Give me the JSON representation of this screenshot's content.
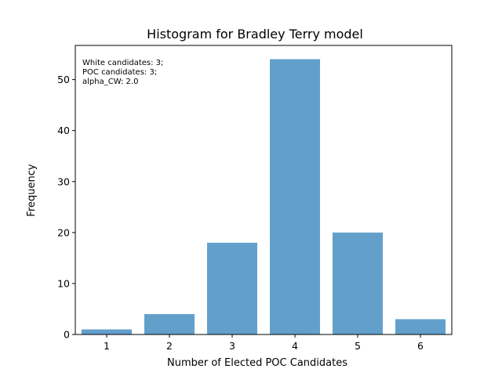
{
  "chart_data": {
    "type": "bar",
    "title": "Histogram for Bradley Terry model",
    "xlabel": "Number of Elected POC Candidates",
    "ylabel": "Frequency",
    "categories": [
      "1",
      "2",
      "3",
      "4",
      "5",
      "6"
    ],
    "values": [
      1,
      4,
      18,
      54,
      20,
      3
    ],
    "x_range": [
      0.5,
      6.5
    ],
    "ylim": [
      0,
      56.7
    ],
    "yticks": [
      "0",
      "10",
      "20",
      "30",
      "40",
      "50"
    ],
    "grid": false,
    "legend": "none",
    "bar_color": "#62a0cb",
    "annotation_lines": [
      "White candidates: 3;",
      "POC candidates: 3;",
      "alpha_CW: 2.0"
    ]
  }
}
